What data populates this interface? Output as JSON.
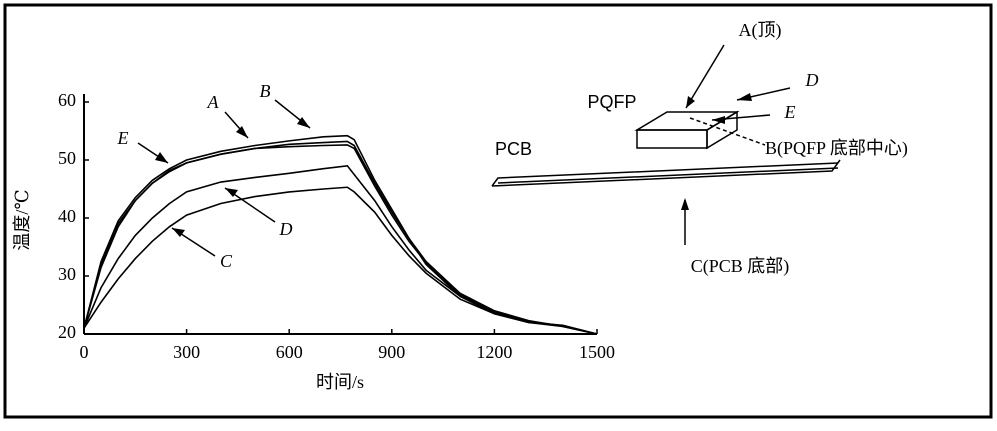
{
  "chart_data": {
    "type": "line",
    "x_label": "时间/s",
    "y_label": "温度/℃",
    "x": [
      0,
      50,
      100,
      150,
      200,
      250,
      300,
      400,
      500,
      600,
      700,
      770,
      790,
      850,
      900,
      950,
      1000,
      1100,
      1200,
      1300,
      1400,
      1500
    ],
    "series": [
      {
        "name": "A",
        "color": "#000000",
        "values": [
          21,
          32,
          39,
          43,
          46,
          48,
          49.5,
          51,
          52,
          52.7,
          53,
          53.2,
          52.5,
          46,
          41,
          36.5,
          32.5,
          27,
          24,
          22.3,
          21.3,
          20
        ]
      },
      {
        "name": "B",
        "color": "#000000",
        "values": [
          21,
          32.5,
          39.5,
          43.5,
          46.5,
          48.5,
          50,
          51.5,
          52.5,
          53.3,
          54,
          54.2,
          53.5,
          46.5,
          41.5,
          36.5,
          32,
          26.5,
          23.5,
          22,
          21.5,
          20
        ]
      },
      {
        "name": "C",
        "color": "#000000",
        "values": [
          21,
          25.5,
          29.5,
          33,
          36,
          38.5,
          40.5,
          42.5,
          43.7,
          44.5,
          45,
          45.3,
          44.5,
          41,
          37,
          33.5,
          30.5,
          26,
          23.5,
          22,
          21.3,
          20
        ]
      },
      {
        "name": "D",
        "color": "#000000",
        "values": [
          21,
          28,
          33,
          37,
          40,
          42.5,
          44.5,
          46.2,
          47,
          47.7,
          48.5,
          49,
          47.5,
          43,
          38.5,
          34.5,
          31,
          26.5,
          23.7,
          22.2,
          21.4,
          20
        ]
      },
      {
        "name": "E",
        "color": "#000000",
        "values": [
          21,
          31.5,
          38.5,
          43,
          46,
          48.2,
          49.5,
          51,
          52,
          52.3,
          52.5,
          52.6,
          52,
          45.5,
          40.5,
          36,
          32.3,
          26.8,
          23.8,
          22.1,
          21.4,
          20
        ]
      }
    ],
    "xlim": [
      0,
      1500
    ],
    "xticks": [
      0,
      300,
      600,
      900,
      1200,
      1500
    ],
    "ylim": [
      20,
      60
    ],
    "yticks": [
      20,
      30,
      40,
      50,
      60
    ],
    "grid": false
  },
  "diagram": {
    "top_label": "A(顶)",
    "package": "PQFP",
    "side_label": "D",
    "edge_label": "E",
    "center_label": "B(PQFP 底部中心)",
    "board": "PCB",
    "board_bottom_label": "C(PCB 底部)"
  }
}
